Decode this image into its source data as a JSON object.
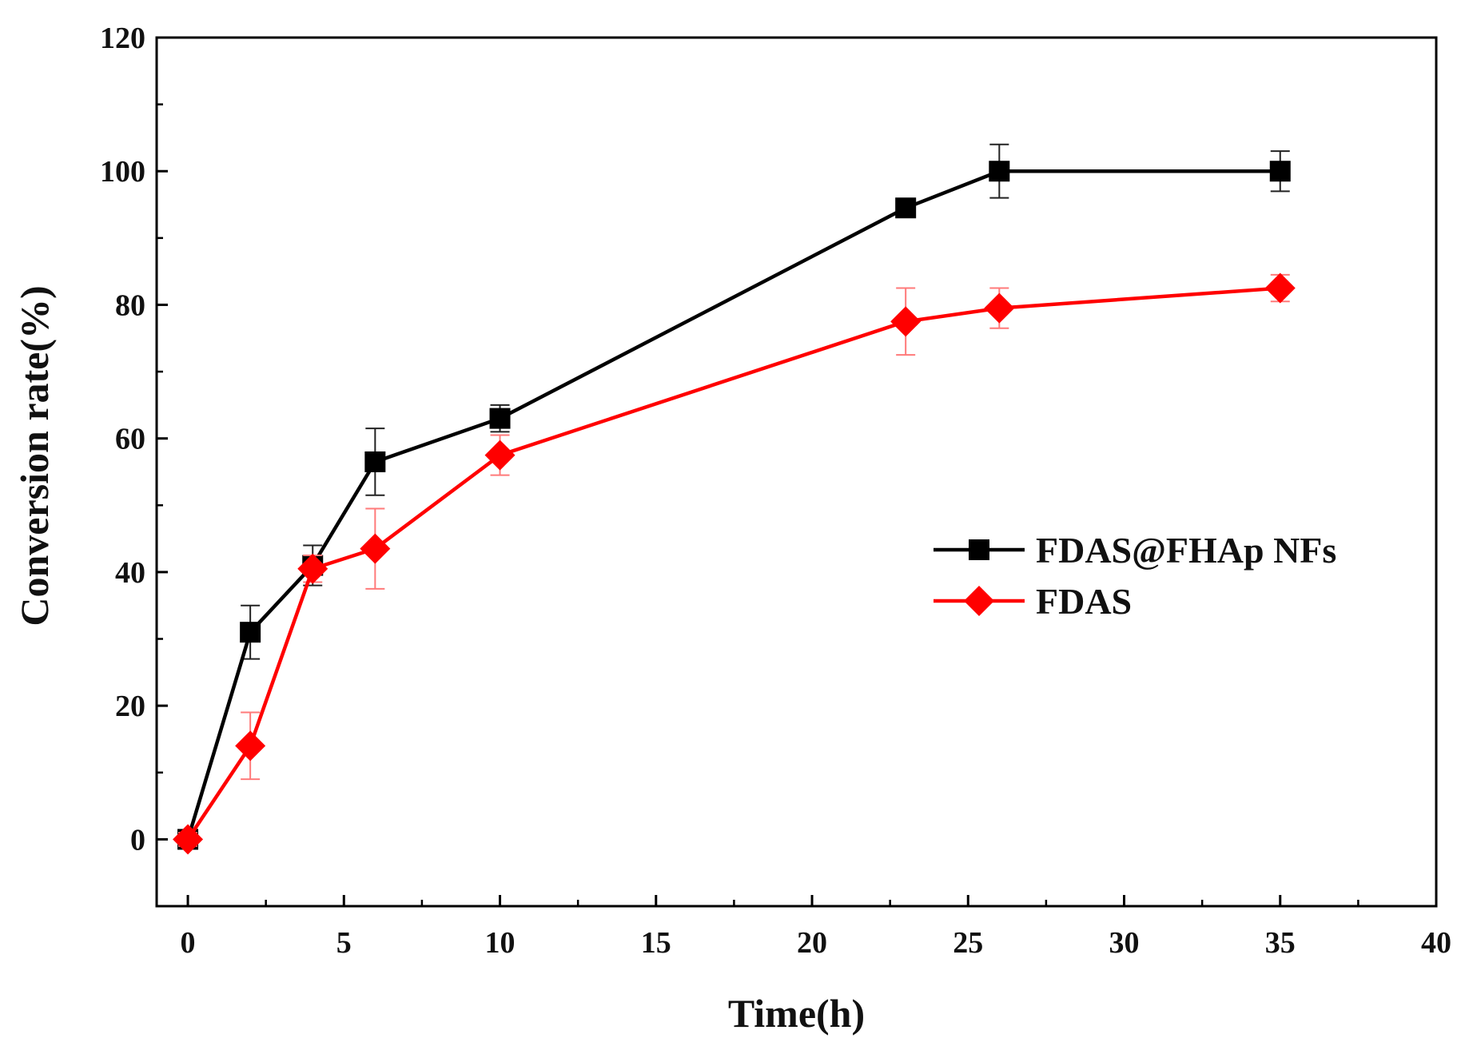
{
  "chart_data": {
    "type": "line",
    "title": "",
    "xlabel": "Time(h)",
    "ylabel": "Conversion rate(%)",
    "xlim": [
      -1,
      40
    ],
    "ylim": [
      -10,
      120
    ],
    "xticks": [
      0,
      5,
      10,
      15,
      20,
      25,
      30,
      35,
      40
    ],
    "yticks": [
      0,
      20,
      40,
      60,
      80,
      100,
      120
    ],
    "legend_position": "center-right",
    "series": [
      {
        "name": "FDAS@FHAp NFs",
        "color": "#000000",
        "marker": "square",
        "x": [
          0,
          2,
          4,
          6,
          10,
          23,
          26,
          35
        ],
        "y": [
          0,
          31,
          41,
          56.5,
          63,
          94.5,
          100,
          100
        ],
        "error": [
          1,
          4,
          3,
          5,
          2,
          1,
          4,
          3
        ]
      },
      {
        "name": "FDAS",
        "color": "#ff0000",
        "marker": "diamond",
        "x": [
          0,
          2,
          4,
          6,
          10,
          23,
          26,
          35
        ],
        "y": [
          0,
          14,
          40.5,
          43.5,
          57.5,
          77.5,
          79.5,
          82.5
        ],
        "error": [
          1,
          5,
          2,
          6,
          3,
          5,
          3,
          2
        ]
      }
    ]
  }
}
